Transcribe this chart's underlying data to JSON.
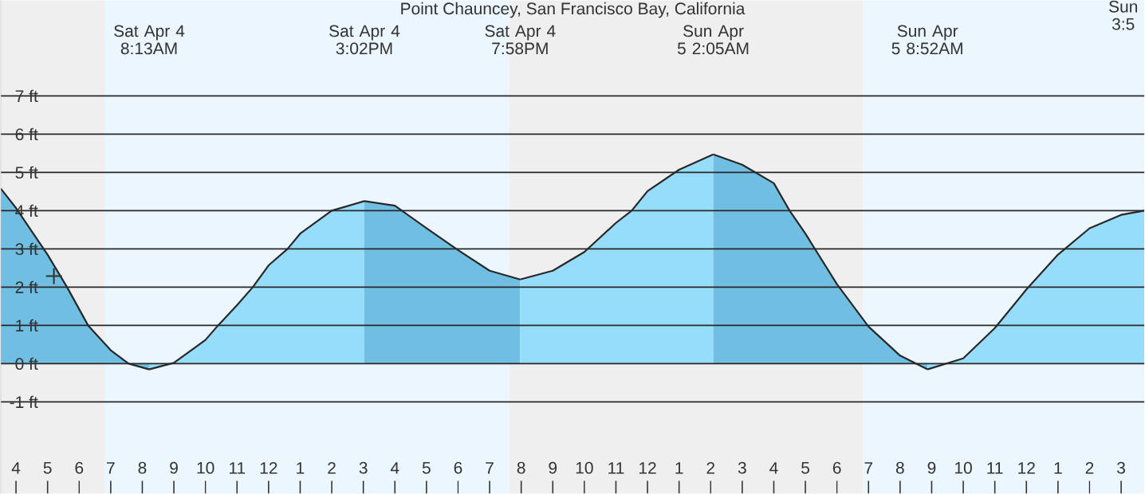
{
  "chart_data": {
    "type": "area",
    "title": "Point Chauncey, San Francisco Bay, California",
    "xlim": [
      "--04-04T03:31",
      "--04-05T15:44"
    ],
    "ylim": [
      -3.4,
      9.5
    ],
    "xticks": [
      {
        "value": "--04-04T04:00",
        "label": "4"
      },
      {
        "value": "--04-04T05:00",
        "label": "5"
      },
      {
        "value": "--04-04T06:00",
        "label": "6"
      },
      {
        "value": "--04-04T07:00",
        "label": "7"
      },
      {
        "value": "--04-04T08:00",
        "label": "8"
      },
      {
        "value": "--04-04T09:00",
        "label": "9"
      },
      {
        "value": "--04-04T10:00",
        "label": "10"
      },
      {
        "value": "--04-04T11:00",
        "label": "11"
      },
      {
        "value": "--04-04T12:00",
        "label": "12"
      },
      {
        "value": "--04-04T13:00",
        "label": "1"
      },
      {
        "value": "--04-04T14:00",
        "label": "2"
      },
      {
        "value": "--04-04T15:00",
        "label": "3"
      },
      {
        "value": "--04-04T16:00",
        "label": "4"
      },
      {
        "value": "--04-04T17:00",
        "label": "5"
      },
      {
        "value": "--04-04T18:00",
        "label": "6"
      },
      {
        "value": "--04-04T19:00",
        "label": "7"
      },
      {
        "value": "--04-04T20:00",
        "label": "8"
      },
      {
        "value": "--04-04T21:00",
        "label": "9"
      },
      {
        "value": "--04-04T22:00",
        "label": "10"
      },
      {
        "value": "--04-04T23:00",
        "label": "11"
      },
      {
        "value": "--04-05T00:00",
        "label": "12"
      },
      {
        "value": "--04-05T01:00",
        "label": "1"
      },
      {
        "value": "--04-05T02:00",
        "label": "2"
      },
      {
        "value": "--04-05T03:00",
        "label": "3"
      },
      {
        "value": "--04-05T04:00",
        "label": "4"
      },
      {
        "value": "--04-05T05:00",
        "label": "5"
      },
      {
        "value": "--04-05T06:00",
        "label": "6"
      },
      {
        "value": "--04-05T07:00",
        "label": "7"
      },
      {
        "value": "--04-05T08:00",
        "label": "8"
      },
      {
        "value": "--04-05T09:00",
        "label": "9"
      },
      {
        "value": "--04-05T10:00",
        "label": "10"
      },
      {
        "value": "--04-05T11:00",
        "label": "11"
      },
      {
        "value": "--04-05T12:00",
        "label": "12"
      },
      {
        "value": "--04-05T13:00",
        "label": "1"
      },
      {
        "value": "--04-05T14:00",
        "label": "2"
      },
      {
        "value": "--04-05T15:00",
        "label": "3"
      }
    ],
    "x2lim": [
      "--04-04T03:31",
      "--04-05T15:44"
    ],
    "x2ticks": [
      {
        "value": "--04-04T08:13",
        "label": "Sat Apr 4 8:13AM"
      },
      {
        "value": "--04-04T15:02",
        "label": "Sat Apr 4 3:02PM"
      },
      {
        "value": "--04-04T19:58",
        "label": "Sat Apr 4 7:58PM"
      },
      {
        "value": "--04-05T02:05",
        "label": "Sun Apr 5 2:05AM"
      },
      {
        "value": "--04-05T08:52",
        "label": "Sun Apr 5 8:52AM"
      }
    ],
    "yticks": [
      {
        "value": -1,
        "label": "-1 ft"
      },
      {
        "value": 0,
        "label": "0 ft"
      },
      {
        "value": 1,
        "label": "1 ft"
      },
      {
        "value": 2,
        "label": "2 ft"
      },
      {
        "value": 3,
        "label": "3 ft"
      },
      {
        "value": 4,
        "label": "4 ft"
      },
      {
        "value": 5,
        "label": "5 ft"
      },
      {
        "value": 6,
        "label": "6 ft"
      },
      {
        "value": 7,
        "label": "7 ft"
      }
    ],
    "grid": "y",
    "bands": [
      {
        "axis": "x",
        "from": "--04-04T03:31",
        "to": "--04-04T06:48",
        "color": "#efefef"
      },
      {
        "axis": "x",
        "from": "--04-04T06:48",
        "to": "--04-04T19:37",
        "color": "#ebf6fe"
      },
      {
        "axis": "x",
        "from": "--04-04T19:37",
        "to": "--04-05T06:50",
        "color": "#efefef"
      },
      {
        "axis": "x",
        "from": "--04-05T06:50",
        "to": "--04-05T15:44",
        "color": "#ebf6fe"
      }
    ],
    "series": [
      {
        "color": "#70bfe3",
        "x": [
          "--04-04T03:31",
          "--04-04T04:00",
          "--04-04T05:00",
          "--04-04T05:37",
          "--04-04T06:17",
          "--04-04T07:00",
          "--04-04T07:34",
          "--04-04T08:13"
        ],
        "values": [
          4.58,
          4.07,
          2.85,
          2.0,
          1.0,
          0.35,
          0.0,
          -0.15
        ]
      },
      {
        "color": "#96dcfb",
        "x": [
          "--04-04T08:13",
          "--04-04T09:00",
          "--04-04T10:00",
          "--04-04T10:24",
          "--04-04T11:00",
          "--04-04T11:30",
          "--04-04T12:00",
          "--04-04T12:36",
          "--04-04T13:00",
          "--04-04T14:00",
          "--04-04T15:02"
        ],
        "values": [
          -0.15,
          0.02,
          0.62,
          1.0,
          1.53,
          2.0,
          2.57,
          3.0,
          3.4,
          4.0,
          4.25
        ]
      },
      {
        "color": "#70bfe3",
        "x": [
          "--04-04T15:02",
          "--04-04T16:00",
          "--04-04T17:00",
          "--04-04T18:00",
          "--04-04T19:00",
          "--04-04T19:58"
        ],
        "values": [
          4.25,
          4.13,
          3.54,
          2.97,
          2.43,
          2.2
        ]
      },
      {
        "color": "#96dcfb",
        "x": [
          "--04-04T19:58",
          "--04-04T21:00",
          "--04-04T22:00",
          "--04-04T23:00",
          "--04-04T23:30",
          "--04-05T00:00",
          "--04-05T01:00",
          "--04-05T02:05"
        ],
        "values": [
          2.2,
          2.43,
          2.92,
          3.68,
          4.0,
          4.51,
          5.07,
          5.47
        ]
      },
      {
        "color": "#70bfe3",
        "x": [
          "--04-05T02:05",
          "--04-05T03:00",
          "--04-05T04:00",
          "--04-05T04:30",
          "--04-05T05:00",
          "--04-05T06:00",
          "--04-05T07:00",
          "--04-05T08:00",
          "--04-05T08:52"
        ],
        "values": [
          5.47,
          5.2,
          4.72,
          4.0,
          3.4,
          2.08,
          0.97,
          0.21,
          -0.15
        ]
      },
      {
        "color": "#96dcfb",
        "x": [
          "--04-05T08:52",
          "--04-05T10:00",
          "--04-05T11:00",
          "--04-05T12:00",
          "--04-05T13:00",
          "--04-05T14:00",
          "--04-05T15:00",
          "--04-05T15:44"
        ],
        "values": [
          -0.15,
          0.14,
          0.93,
          1.94,
          2.85,
          3.54,
          3.89,
          4.0
        ]
      },
      {
        "type": "scatter",
        "marker": "cross",
        "color": "#333333",
        "x": [
          "--04-04T05:12"
        ],
        "values": [
          2.29
        ]
      }
    ],
    "annotations": [
      "Sun 3:5"
    ]
  }
}
